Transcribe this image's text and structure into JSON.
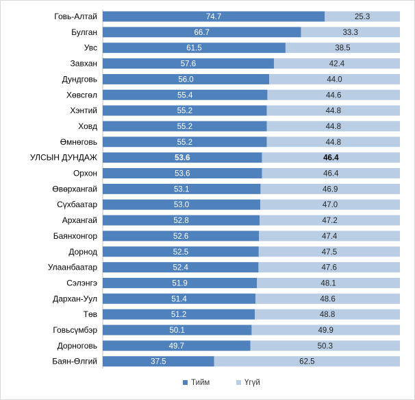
{
  "chart_data": {
    "type": "bar",
    "orientation": "horizontal",
    "stacked": "100%",
    "title": "",
    "xlabel": "",
    "ylabel": "",
    "xlim": [
      0,
      100
    ],
    "grid": false,
    "legend": "bottom-center",
    "highlight_category": "УЛСЫН ДУНДАЖ",
    "categories": [
      "Говь-Алтай",
      "Булган",
      "Увс",
      "Завхан",
      "Дундговь",
      "Хөвсгөл",
      "Хэнтий",
      "Ховд",
      "Өмнөговь",
      "УЛСЫН ДУНДАЖ",
      "Орхон",
      "Өвөрхангай",
      "Сүхбаатар",
      "Архангай",
      "Баянхонгор",
      "Дорнод",
      "Улаанбаатар",
      "Сэлэнгэ",
      "Дархан-Уул",
      "Төв",
      "Говьсүмбэр",
      "Дорноговь",
      "Баян-Өлгий"
    ],
    "series": [
      {
        "name": "Тийм",
        "color": "#4f81bd",
        "label_color": "#ffffff",
        "values": [
          74.7,
          66.7,
          61.5,
          57.6,
          56.0,
          55.4,
          55.2,
          55.2,
          55.2,
          53.6,
          53.6,
          53.1,
          53.0,
          52.8,
          52.6,
          52.5,
          52.4,
          51.9,
          51.4,
          51.2,
          50.1,
          49.7,
          37.5
        ]
      },
      {
        "name": "Үгүй",
        "color": "#b9cde5",
        "label_color": "#262626",
        "values": [
          25.3,
          33.3,
          38.5,
          42.4,
          44.0,
          44.6,
          44.8,
          44.8,
          44.8,
          46.4,
          46.4,
          46.9,
          47.0,
          47.2,
          47.4,
          47.5,
          47.6,
          48.1,
          48.6,
          48.8,
          49.9,
          50.3,
          62.5
        ]
      }
    ]
  }
}
